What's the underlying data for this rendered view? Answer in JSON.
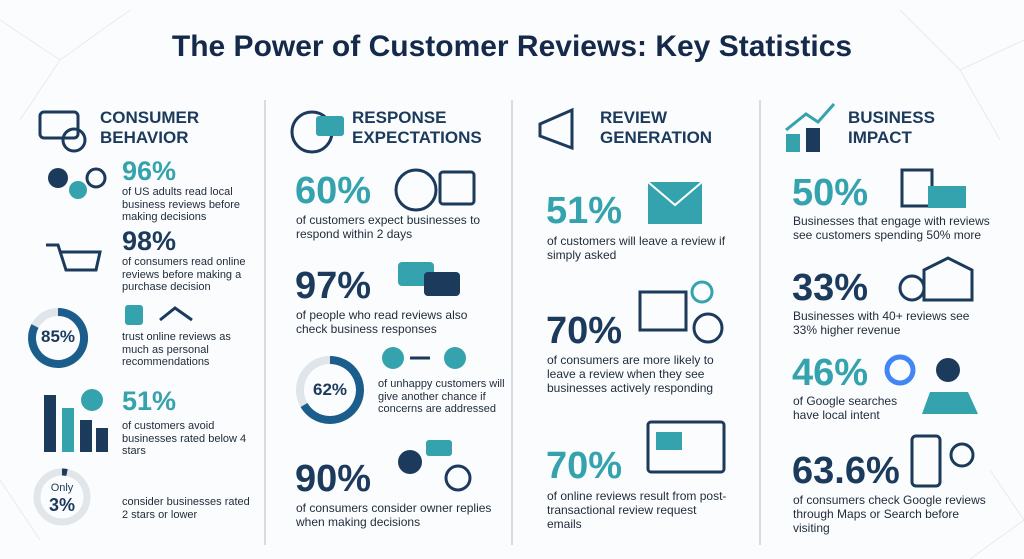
{
  "title": "The Power of Customer Reviews: Key Statistics",
  "columns": [
    {
      "heading": "CONSUMER BEHAVIOR",
      "stats": [
        {
          "value": "96%",
          "text": "of US adults read local business reviews before making decisions"
        },
        {
          "value": "98%",
          "text": "of consumers read online reviews before making a purchase decision"
        },
        {
          "value": "85%",
          "text": "trust online reviews as much as personal recommendations"
        },
        {
          "value": "51%",
          "text": "of customers avoid businesses rated below 4 stars"
        },
        {
          "label": "Only",
          "value": "3%",
          "text": "consider businesses rated 2 stars or lower"
        }
      ]
    },
    {
      "heading": "RESPONSE EXPECTATIONS",
      "stats": [
        {
          "value": "60%",
          "text": "of customers expect businesses to respond within 2 days"
        },
        {
          "value": "97%",
          "text": "of people who read reviews also check business responses"
        },
        {
          "value": "62%",
          "text": "of unhappy customers will give another chance if concerns are addressed"
        },
        {
          "value": "90%",
          "text": "of consumers consider owner replies when making decisions"
        }
      ]
    },
    {
      "heading": "REVIEW GENERATION",
      "stats": [
        {
          "value": "51%",
          "text": "of customers will leave a review if simply asked"
        },
        {
          "value": "70%",
          "text": "of consumers are more likely to leave a review when they see businesses actively responding"
        },
        {
          "value": "70%",
          "text": "of online reviews result from post-transactional review request emails"
        }
      ]
    },
    {
      "heading": "BUSINESS IMPACT",
      "stats": [
        {
          "value": "50%",
          "text": "Businesses that engage with reviews see customers spending 50% more"
        },
        {
          "value": "33%",
          "text": "Businesses with 40+ reviews see 33% higher revenue"
        },
        {
          "value": "46%",
          "text": "of Google searches have local intent"
        },
        {
          "value": "63.6%",
          "text": "of consumers check Google reviews through Maps or Search before visiting"
        }
      ]
    }
  ]
}
